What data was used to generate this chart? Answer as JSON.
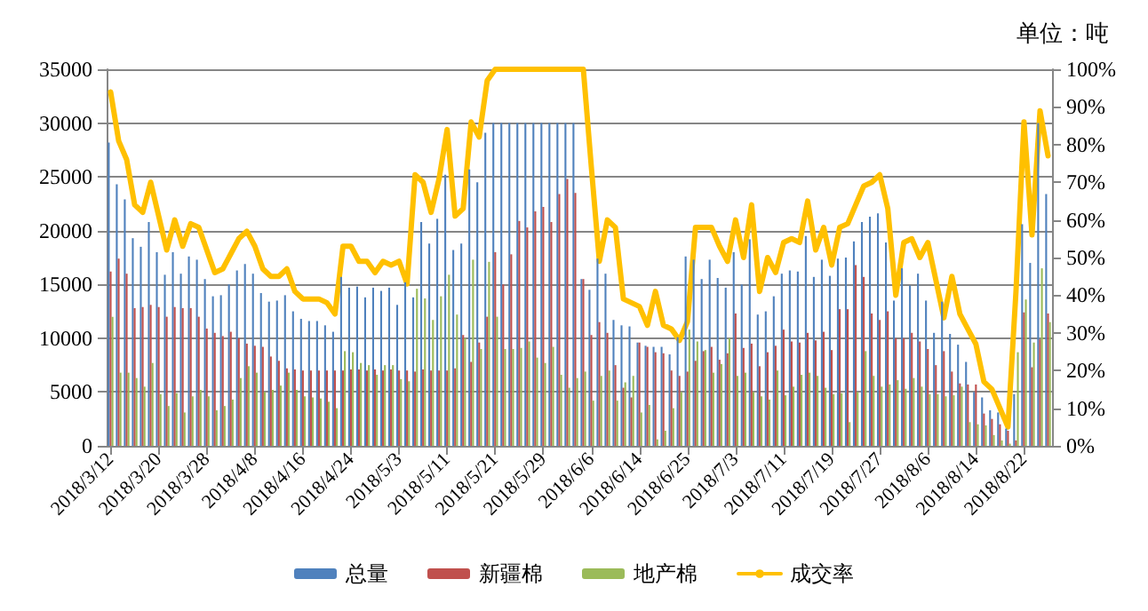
{
  "chart_data": {
    "type": "bar",
    "annotations": [
      "单位：吨"
    ],
    "categories": [
      "2018/3/12",
      null,
      null,
      null,
      null,
      null,
      "2018/3/20",
      null,
      null,
      null,
      null,
      null,
      "2018/3/28",
      null,
      null,
      null,
      null,
      null,
      "2018/4/8",
      null,
      null,
      null,
      null,
      null,
      "2018/4/16",
      null,
      null,
      null,
      null,
      null,
      "2018/4/24",
      null,
      null,
      null,
      null,
      null,
      "2018/5/3",
      null,
      null,
      null,
      null,
      null,
      "2018/5/11",
      null,
      null,
      null,
      null,
      null,
      "2018/5/21",
      null,
      null,
      null,
      null,
      null,
      "2018/5/29",
      null,
      null,
      null,
      null,
      null,
      "2018/6/6",
      null,
      null,
      null,
      null,
      null,
      "2018/6/14",
      null,
      null,
      null,
      null,
      null,
      "2018/6/25",
      null,
      null,
      null,
      null,
      null,
      "2018/7/3",
      null,
      null,
      null,
      null,
      null,
      "2018/7/11",
      null,
      null,
      null,
      null,
      null,
      "2018/7/19",
      null,
      null,
      null,
      null,
      null,
      "2018/7/27",
      null,
      null,
      null,
      null,
      null,
      "2018/8/6",
      null,
      null,
      null,
      null,
      null,
      "2018/8/14",
      null,
      null,
      null,
      null,
      null,
      "2018/8/22",
      null,
      null,
      null
    ],
    "series": [
      {
        "name": "总量",
        "color": "#4f81bd",
        "values": [
          28200,
          24300,
          22900,
          19300,
          18500,
          20800,
          18000,
          15900,
          18000,
          16000,
          17600,
          17300,
          15500,
          13900,
          14000,
          15000,
          16300,
          16900,
          16000,
          14200,
          13400,
          13500,
          14000,
          12500,
          11800,
          11600,
          11600,
          11200,
          10600,
          15700,
          14700,
          14800,
          13800,
          14700,
          14400,
          14700,
          13100,
          15200,
          13800,
          20800,
          18800,
          21100,
          25200,
          18200,
          18800,
          25700,
          24500,
          29100,
          30000,
          30000,
          30000,
          30000,
          30000,
          30000,
          30000,
          30000,
          30000,
          30000,
          30000,
          15500,
          14500,
          17400,
          16000,
          11700,
          11200,
          11100,
          9600,
          9300,
          9200,
          9200,
          8500,
          10100,
          17600,
          17300,
          15500,
          17300,
          15600,
          14700,
          18000,
          15000,
          19200,
          12200,
          12500,
          13900,
          16000,
          16300,
          16200,
          19500,
          15700,
          17300,
          15800,
          17400,
          17500,
          19000,
          20800,
          21300,
          21600,
          18900,
          13500,
          16500,
          14900,
          16000,
          13500,
          10500,
          13400,
          10400,
          9400,
          7800,
          5000,
          4500,
          3300,
          3100,
          1600,
          4800,
          20600,
          17000,
          30000,
          23400
        ]
      },
      {
        "name": "新疆棉",
        "color": "#c0504d",
        "values": [
          16200,
          17400,
          16000,
          12800,
          12900,
          13100,
          12900,
          12000,
          12900,
          12800,
          12800,
          12000,
          10900,
          10500,
          10200,
          10600,
          10000,
          9500,
          9300,
          9200,
          8300,
          7900,
          7200,
          7100,
          7000,
          7000,
          7000,
          7000,
          7000,
          7000,
          7100,
          7100,
          7000,
          7100,
          7000,
          7100,
          7000,
          7000,
          6900,
          7100,
          7000,
          7000,
          7000,
          7200,
          10300,
          7800,
          9600,
          12000,
          18000,
          15000,
          17800,
          20900,
          20300,
          21800,
          22200,
          20800,
          23400,
          24800,
          23500,
          15500,
          10300,
          11500,
          10500,
          7500,
          5400,
          4500,
          9600,
          9200,
          8700,
          8600,
          7000,
          6500,
          6900,
          7900,
          8800,
          9200,
          8000,
          8600,
          12300,
          9100,
          9500,
          7400,
          8700,
          9300,
          10800,
          9700,
          9600,
          10500,
          9800,
          10600,
          8900,
          12700,
          12700,
          16800,
          15700,
          12300,
          11700,
          12500,
          10000,
          10000,
          10500,
          9700,
          9000,
          7500,
          8800,
          6900,
          5800,
          5700,
          5700,
          3000,
          2500,
          2000,
          1400,
          500,
          12400,
          7300,
          9900,
          12300
        ]
      },
      {
        "name": "地产棉",
        "color": "#9bbb59",
        "values": [
          12000,
          6800,
          6800,
          6300,
          5500,
          7700,
          4800,
          3700,
          4900,
          3100,
          4600,
          5200,
          4600,
          3300,
          3700,
          4300,
          6300,
          7400,
          6800,
          5000,
          5200,
          5600,
          6800,
          5200,
          4600,
          4500,
          4400,
          4100,
          3500,
          8800,
          8700,
          7700,
          7500,
          6600,
          7500,
          7500,
          6200,
          6000,
          14600,
          13700,
          11700,
          13900,
          15900,
          12200,
          10000,
          17300,
          9000,
          17100,
          12000,
          9000,
          9000,
          9100,
          9700,
          8200,
          7700,
          9200,
          6600,
          5400,
          6300,
          6900,
          4200,
          6500,
          7000,
          4200,
          5900,
          6500,
          3100,
          3800,
          600,
          1400,
          3500,
          5000,
          10800,
          9700,
          8900,
          6800,
          7600,
          10000,
          6500,
          6800,
          5000,
          4600,
          4300,
          7000,
          4700,
          5500,
          6600,
          6800,
          6500,
          5400,
          4800,
          4900,
          2200,
          5000,
          8800,
          6500,
          5500,
          5700,
          6100,
          5300,
          6300,
          5500,
          4800,
          4800,
          4600,
          4700,
          5500,
          2200,
          2000,
          1900,
          1000,
          500,
          200,
          8700,
          13600,
          9600,
          16500,
          11500
        ]
      },
      {
        "name": "成交率",
        "type": "line",
        "axis": "y2",
        "color": "#ffc000",
        "values": [
          94,
          81,
          76,
          64,
          62,
          70,
          61,
          52,
          60,
          53,
          59,
          58,
          52,
          46,
          47,
          51,
          55,
          57,
          53,
          47,
          45,
          45,
          47,
          41,
          39,
          39,
          39,
          38,
          35,
          53,
          53,
          49,
          49,
          46,
          49,
          48,
          49,
          43,
          72,
          70,
          62,
          71,
          84,
          61,
          63,
          86,
          82,
          97,
          100,
          100,
          100,
          100,
          100,
          100,
          100,
          100,
          100,
          100,
          100,
          100,
          74,
          49,
          60,
          58,
          39,
          38,
          37,
          32,
          41,
          32,
          31,
          28,
          33,
          58,
          58,
          58,
          53,
          49,
          60,
          50,
          64,
          41,
          50,
          46,
          54,
          55,
          54,
          65,
          52,
          58,
          48,
          58,
          59,
          64,
          69,
          70,
          72,
          63,
          40,
          54,
          55,
          50,
          54,
          44,
          34,
          45,
          35,
          31,
          27,
          17,
          15,
          10,
          5,
          41,
          86,
          56,
          89,
          77
        ]
      }
    ],
    "ylim": [
      0,
      35000
    ],
    "yticks": [
      0,
      5000,
      10000,
      15000,
      20000,
      25000,
      30000,
      35000
    ],
    "y2lim": [
      0,
      100
    ],
    "y2ticks": [
      {
        "value": 0,
        "label": "0%"
      },
      {
        "value": 10,
        "label": "10%"
      },
      {
        "value": 20,
        "label": "20%"
      },
      {
        "value": 30,
        "label": "30%"
      },
      {
        "value": 40,
        "label": "40%"
      },
      {
        "value": 50,
        "label": "50%"
      },
      {
        "value": 60,
        "label": "60%"
      },
      {
        "value": 70,
        "label": "70%"
      },
      {
        "value": 80,
        "label": "80%"
      },
      {
        "value": 90,
        "label": "90%"
      },
      {
        "value": 100,
        "label": "100%"
      }
    ],
    "grid": "y",
    "legend": "bottom",
    "marker": "none",
    "line_style": "solid"
  }
}
